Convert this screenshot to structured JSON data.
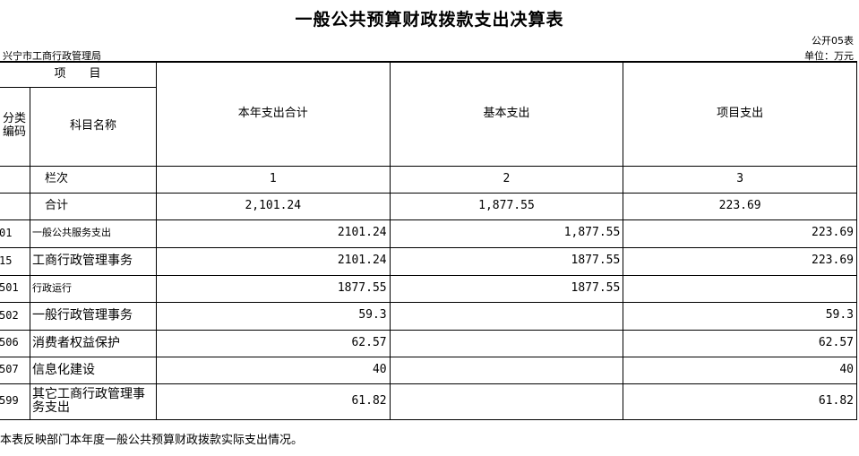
{
  "title": "一般公共预算财政拨款支出决算表",
  "org": "兴宁市工商行政管理局",
  "form_no": "公开05表",
  "unit": "单位：万元",
  "header": {
    "item": "项　　目",
    "code": "分类\n编码",
    "subject": "科目名称",
    "col1": "本年支出合计",
    "col2": "基本支出",
    "col3": "项目支出"
  },
  "index_row": {
    "label": "栏次",
    "c1": "1",
    "c2": "2",
    "c3": "3"
  },
  "total_row": {
    "label": "合计",
    "c1": "2,101.24",
    "c2": "1,877.55",
    "c3": "223.69"
  },
  "rows": [
    {
      "code": "01",
      "name": "一般公共服务支出",
      "c1": "2101.24",
      "c2": "1,877.55",
      "c3": "223.69"
    },
    {
      "code": "15",
      "name": "工商行政管理事务",
      "c1": "2101.24",
      "c2": "1877.55",
      "c3": "223.69"
    },
    {
      "code": "501",
      "name": "行政运行",
      "c1": "1877.55",
      "c2": "1877.55",
      "c3": ""
    },
    {
      "code": "502",
      "name": "一般行政管理事务",
      "c1": "59.3",
      "c2": "",
      "c3": "59.3"
    },
    {
      "code": "506",
      "name": "消费者权益保护",
      "c1": "62.57",
      "c2": "",
      "c3": "62.57"
    },
    {
      "code": "507",
      "name": "信息化建设",
      "c1": "40",
      "c2": "",
      "c3": "40"
    },
    {
      "code": "599",
      "name": "其它工商行政管理事务支出",
      "c1": "61.82",
      "c2": "",
      "c3": "61.82"
    }
  ],
  "note": "本表反映部门本年度一般公共预算财政拨款实际支出情况。"
}
